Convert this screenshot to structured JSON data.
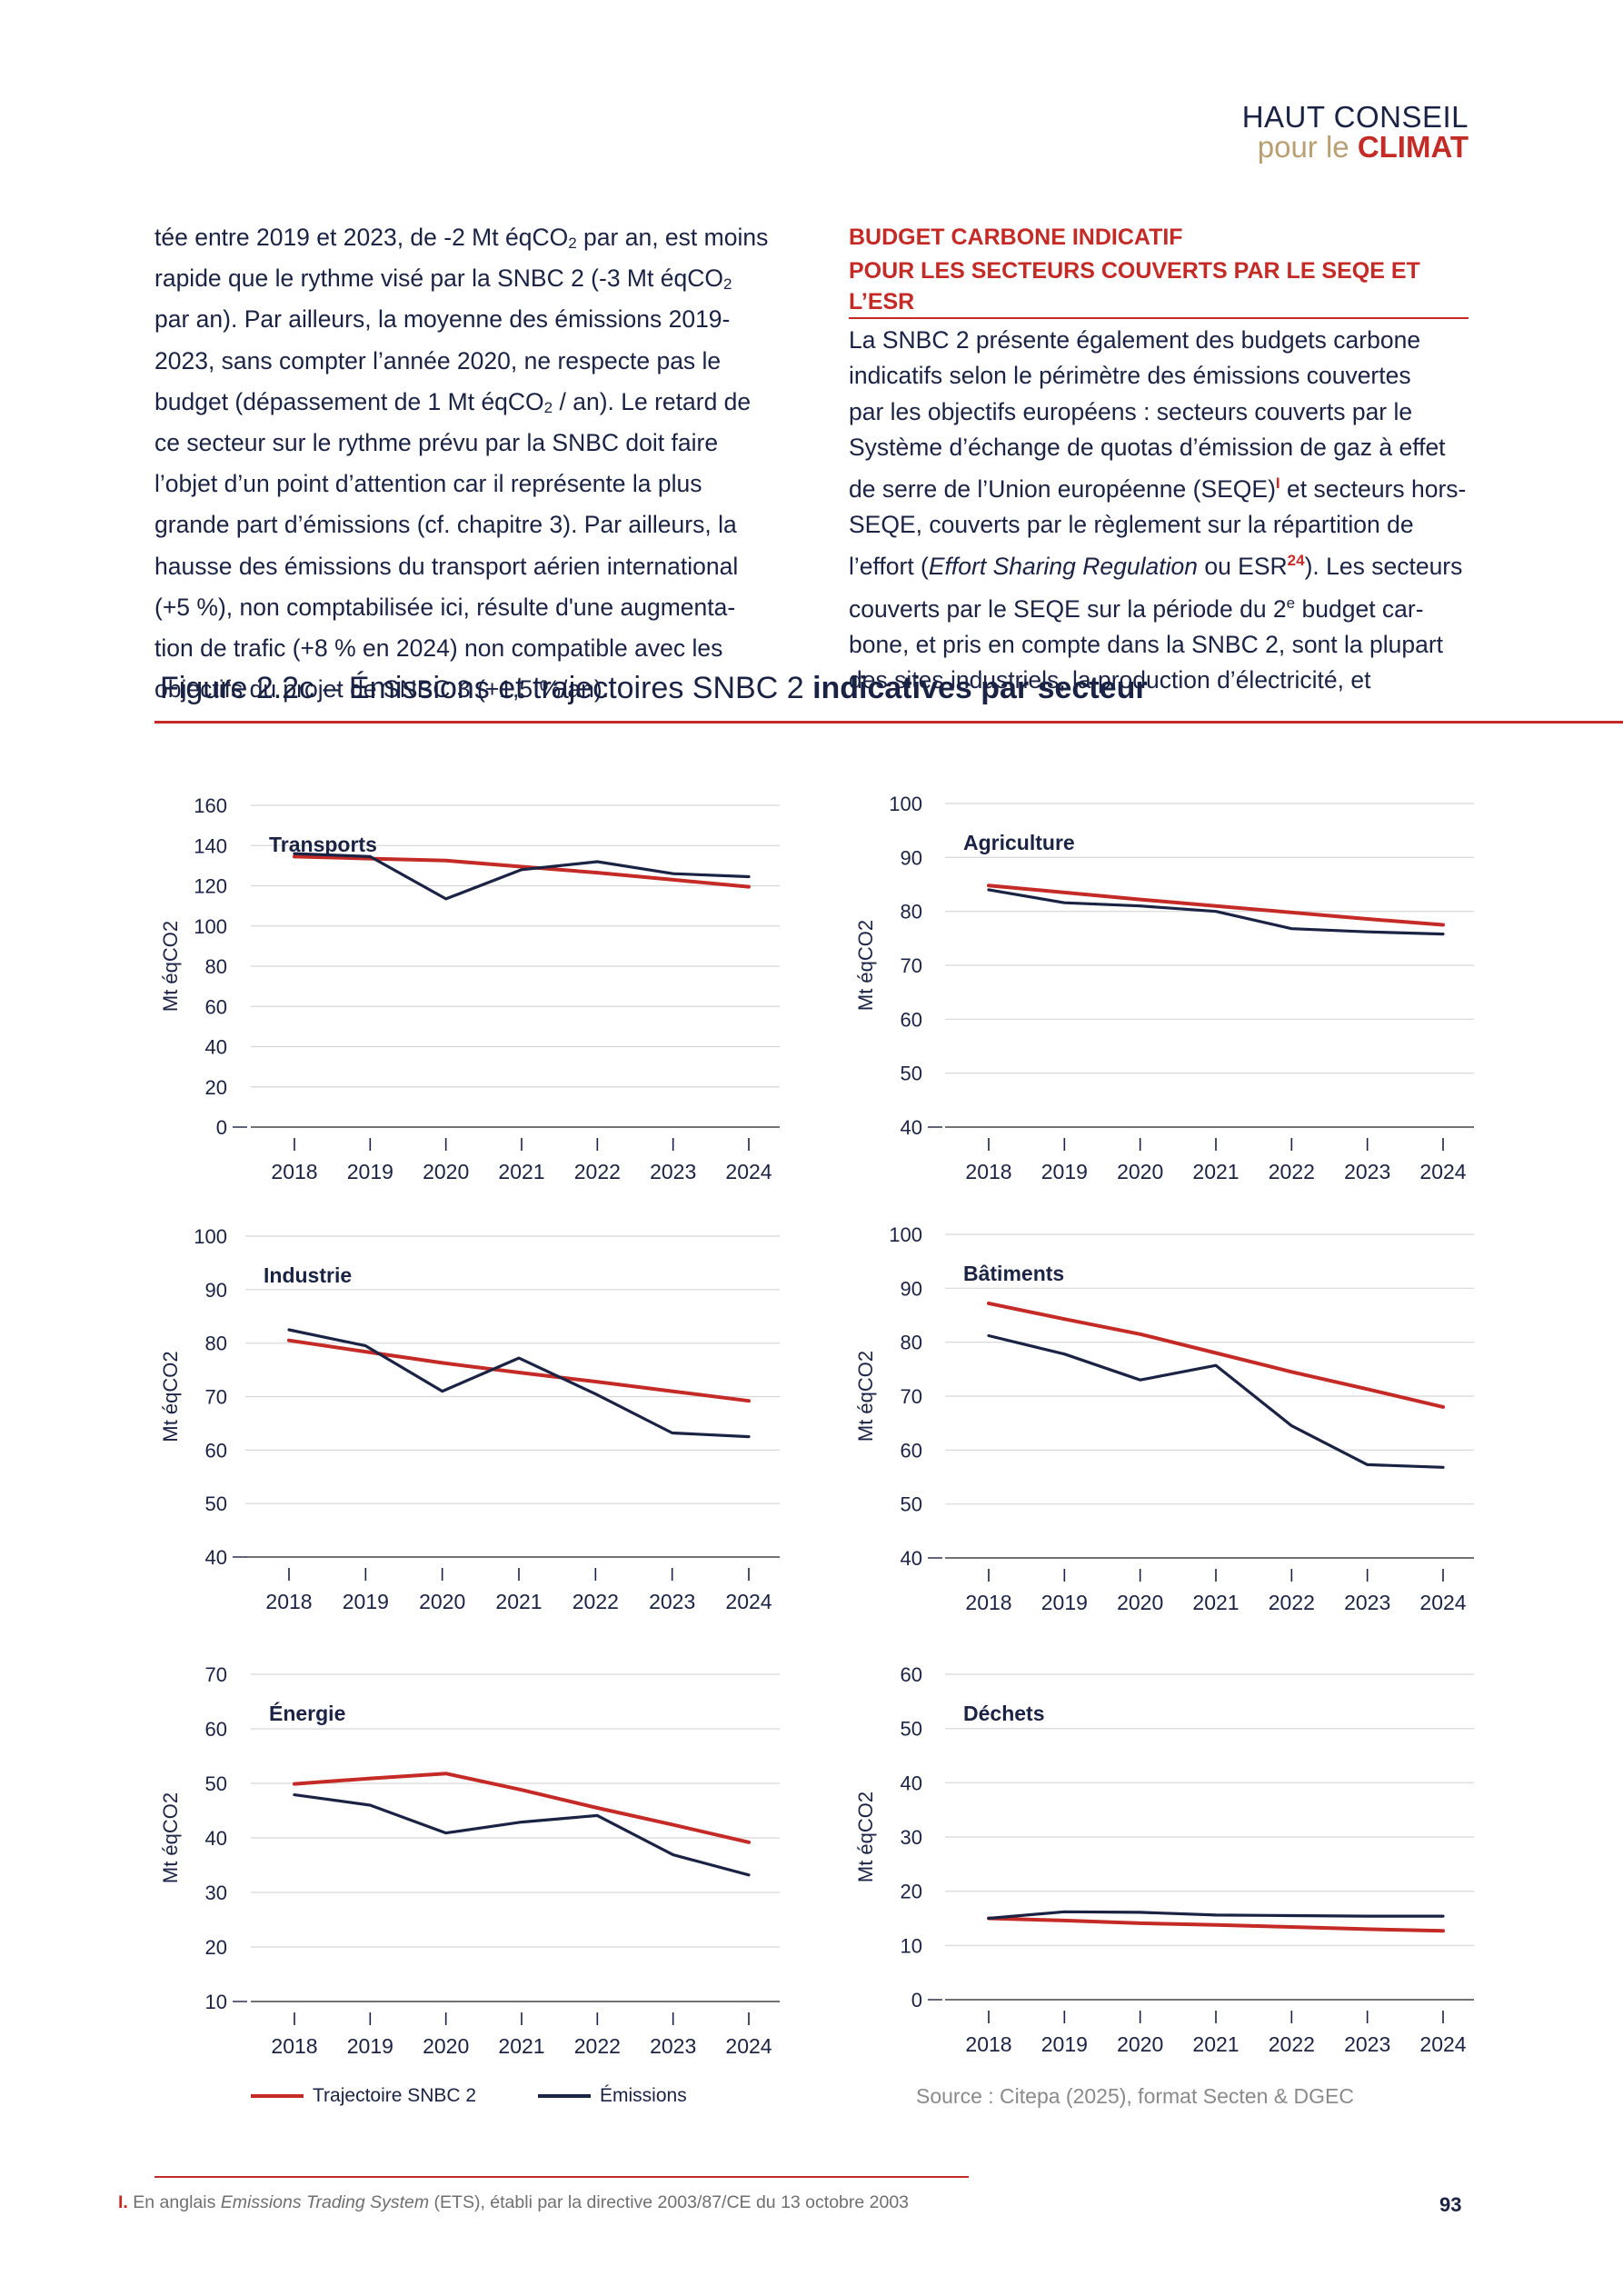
{
  "brand": {
    "line1": "HAUT CONSEIL",
    "pour_le": "pour le",
    "climat": "CLIMAT"
  },
  "left_column": {
    "lines": [
      [
        "tée entre 2019 et 2023, de -2 Mt éqCO",
        "2",
        " par an, est moins"
      ],
      [
        "rapide que le rythme visé par la SNBC 2 (-3 Mt éqCO",
        "2",
        ""
      ],
      [
        "par an). Par ailleurs, la moyenne des émissions 2019-",
        "",
        ""
      ],
      [
        "2023, sans compter l’année 2020, ne respecte pas le",
        "",
        ""
      ],
      [
        "budget (dépassement de 1 Mt éqCO",
        "2",
        " / an). Le retard de"
      ],
      [
        "ce secteur sur le rythme prévu par la SNBC doit faire",
        "",
        ""
      ],
      [
        "l’objet d’un point d’attention car il représente la plus",
        "",
        ""
      ],
      [
        "grande part d’émissions (cf. chapitre 3). Par ailleurs, la",
        "",
        ""
      ],
      [
        "hausse des émissions du transport aérien international",
        "",
        ""
      ],
      [
        "(+5 %), non comptabilisée ici, résulte d'une augmenta-",
        "",
        ""
      ],
      [
        "tion de trafic (+8 % en 2024) non compatible avec les",
        "",
        ""
      ],
      [
        "objectifs du projet de SNBC 3 (+1,5 %/an).",
        "",
        ""
      ]
    ]
  },
  "right_column": {
    "heading_line1": "BUDGET CARBONE INDICATIF",
    "heading_line2": "POUR LES SECTEURS COUVERTS PAR LE SEQE ET L’ESR",
    "l1": "La SNBC 2 présente également des budgets carbone",
    "l2": "indicatifs selon le périmètre des émissions couvertes",
    "l3": "par les objectifs européens : secteurs couverts par le",
    "l4": "Système d’échange de quotas d’émission de gaz à effet",
    "l5a": "de serre de l’Union européenne (SEQE)",
    "l5ref": "I",
    "l5b": " et secteurs hors-",
    "l6": "SEQE, couverts par le règlement sur la répartition de",
    "l7a": "l’effort (",
    "l7i": "Effort Sharing Regulation",
    "l7b": " ou ESR",
    "l7ref": "24",
    "l7c": "). Les secteurs",
    "l8a": "couverts par le SEQE sur la période du 2",
    "l8sup": "e",
    "l8b": " budget car-",
    "l9": "bone, et pris en compte dans la SNBC 2, sont la plupart",
    "l10": "des sites industriels, la production d’électricité, et"
  },
  "figure": {
    "title_plain": "Figure 2.2c – Émissions et trajectoires SNBC 2 ",
    "title_bold": "indicatives par secteur"
  },
  "colors": {
    "trajectoire": "#c42a26",
    "emissions": "#1b2344",
    "grid": "#d6d6d6",
    "text": "#1b2344"
  },
  "chart_data": [
    {
      "type": "line",
      "title": "Transports",
      "ylabel": "Mt éqCO2",
      "x": [
        2018,
        2019,
        2020,
        2021,
        2022,
        2023,
        2024
      ],
      "yticks": [
        0,
        20,
        40,
        60,
        80,
        100,
        120,
        140,
        160
      ],
      "ylim": [
        0,
        160
      ],
      "series": [
        {
          "name": "Trajectoire SNBC 2",
          "values": [
            134.5,
            133.5,
            132.5,
            129.5,
            126.5,
            123,
            119.5
          ]
        },
        {
          "name": "Émissions",
          "values": [
            136,
            134.5,
            113.5,
            128,
            132,
            126,
            124.5
          ]
        }
      ]
    },
    {
      "type": "line",
      "title": "Agriculture",
      "ylabel": "Mt éqCO2",
      "x": [
        2018,
        2019,
        2020,
        2021,
        2022,
        2023,
        2024
      ],
      "yticks": [
        40,
        50,
        60,
        70,
        80,
        90,
        100
      ],
      "ylim": [
        40,
        100
      ],
      "series": [
        {
          "name": "Trajectoire SNBC 2",
          "values": [
            84.8,
            83.5,
            82.2,
            81,
            79.8,
            78.6,
            77.5
          ]
        },
        {
          "name": "Émissions",
          "values": [
            84,
            81.6,
            81,
            80,
            76.8,
            76.2,
            75.8
          ]
        }
      ]
    },
    {
      "type": "line",
      "title": "Industrie",
      "ylabel": "Mt éqCO2",
      "x": [
        2018,
        2019,
        2020,
        2021,
        2022,
        2023,
        2024
      ],
      "yticks": [
        40,
        50,
        60,
        70,
        80,
        90,
        100
      ],
      "ylim": [
        40,
        100
      ],
      "series": [
        {
          "name": "Trajectoire SNBC 2",
          "values": [
            80.5,
            78.4,
            76.3,
            74.5,
            72.8,
            71,
            69.2
          ]
        },
        {
          "name": "Émissions",
          "values": [
            82.5,
            79.5,
            71,
            77.2,
            70.5,
            63.2,
            62.5
          ]
        }
      ]
    },
    {
      "type": "line",
      "title": "Bâtiments",
      "ylabel": "Mt éqCO2",
      "x": [
        2018,
        2019,
        2020,
        2021,
        2022,
        2023,
        2024
      ],
      "yticks": [
        40,
        50,
        60,
        70,
        80,
        90,
        100
      ],
      "ylim": [
        40,
        100
      ],
      "series": [
        {
          "name": "Trajectoire SNBC 2",
          "values": [
            87.2,
            84.3,
            81.5,
            78,
            74.5,
            71.3,
            68
          ]
        },
        {
          "name": "Émissions",
          "values": [
            81.2,
            77.8,
            73,
            75.7,
            64.5,
            57.3,
            56.8
          ]
        }
      ]
    },
    {
      "type": "line",
      "title": "Énergie",
      "ylabel": "Mt éqCO2",
      "x": [
        2018,
        2019,
        2020,
        2021,
        2022,
        2023,
        2024
      ],
      "yticks": [
        10,
        20,
        30,
        40,
        50,
        60,
        70
      ],
      "ylim": [
        10,
        70
      ],
      "series": [
        {
          "name": "Trajectoire SNBC 2",
          "values": [
            49.9,
            50.9,
            51.8,
            48.8,
            45.5,
            42.4,
            39.2
          ]
        },
        {
          "name": "Émissions",
          "values": [
            47.9,
            46,
            40.9,
            42.9,
            44.1,
            36.9,
            33.2
          ]
        }
      ]
    },
    {
      "type": "line",
      "title": "Déchets",
      "ylabel": "Mt éqCO2",
      "x": [
        2018,
        2019,
        2020,
        2021,
        2022,
        2023,
        2024
      ],
      "yticks": [
        0,
        10,
        20,
        30,
        40,
        50,
        60
      ],
      "ylim": [
        0,
        60
      ],
      "series": [
        {
          "name": "Trajectoire SNBC 2",
          "values": [
            15,
            14.6,
            14.1,
            13.8,
            13.4,
            13.0,
            12.7
          ]
        },
        {
          "name": "Émissions",
          "values": [
            15,
            16.2,
            16.1,
            15.6,
            15.5,
            15.4,
            15.4
          ]
        }
      ]
    }
  ],
  "legend": {
    "trajectoire": "Trajectoire SNBC 2",
    "emissions": "Émissions"
  },
  "source": "Source : Citepa (2025), format Secten & DGEC",
  "footnote": {
    "mark": "I.",
    "t1": " En anglais ",
    "italic": "Emissions Trading System",
    "t2": " (ETS), établi par la directive 2003/87/CE du 13 octobre 2003"
  },
  "page_number": "93"
}
